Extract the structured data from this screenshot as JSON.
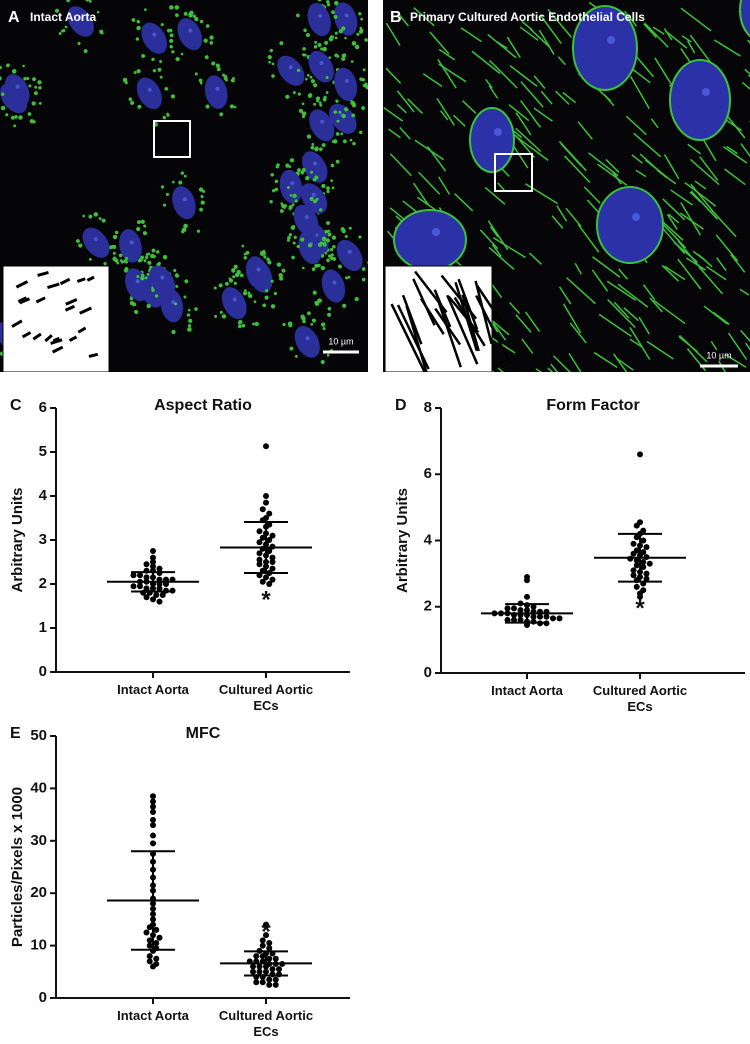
{
  "panels": [
    {
      "letter": "A",
      "title": "Intact Aorta",
      "scale_bar": "10 µm"
    },
    {
      "letter": "B",
      "title": "Primary Cultured Aortic Endothelial Cells",
      "scale_bar": "10 µm"
    }
  ],
  "chart_data": [
    {
      "type": "strip",
      "panel_label": "C",
      "title": "Aspect Ratio",
      "y_label": "Arbitrary Units",
      "categories": [
        "Intact Aorta",
        "Cultured Aortic ECs"
      ],
      "color": "#000000",
      "points": [
        [
          2.75,
          2.6,
          2.5,
          2.45,
          2.4,
          2.35,
          2.3,
          2.3,
          2.25,
          2.2,
          2.2,
          2.15,
          2.15,
          2.1,
          2.1,
          2.1,
          2.05,
          2.05,
          2.0,
          2.0,
          2.0,
          1.95,
          1.95,
          1.9,
          1.9,
          1.9,
          1.85,
          1.85,
          1.8,
          1.8,
          1.75,
          1.75,
          1.7,
          1.65,
          1.6
        ],
        [
          5.13,
          4.0,
          3.85,
          3.7,
          3.6,
          3.5,
          3.45,
          3.35,
          3.3,
          3.2,
          3.15,
          3.1,
          3.05,
          3.0,
          2.95,
          2.9,
          2.85,
          2.8,
          2.75,
          2.7,
          2.65,
          2.6,
          2.55,
          2.5,
          2.5,
          2.45,
          2.4,
          2.35,
          2.3,
          2.25,
          2.2,
          2.15,
          2.1,
          2.05,
          2.0
        ]
      ],
      "means": [
        2.05,
        2.83
      ],
      "sd": [
        0.22,
        0.58
      ],
      "annotation": {
        "text": "*",
        "category": 1,
        "position": "below"
      },
      "ylim": [
        0,
        6
      ],
      "yticks": [
        0,
        1,
        2,
        3,
        4,
        5,
        6
      ]
    },
    {
      "type": "strip",
      "panel_label": "D",
      "title": "Form Factor",
      "y_label": "Arbitrary Units",
      "categories": [
        "Intact Aorta",
        "Cultured Aortic ECs"
      ],
      "color": "#000000",
      "points": [
        [
          2.9,
          2.8,
          2.3,
          2.1,
          2.05,
          2.0,
          1.95,
          1.95,
          1.9,
          1.9,
          1.85,
          1.85,
          1.85,
          1.8,
          1.8,
          1.8,
          1.75,
          1.75,
          1.75,
          1.7,
          1.7,
          1.7,
          1.65,
          1.65,
          1.6,
          1.6,
          1.6,
          1.55,
          1.55,
          1.5,
          1.5,
          1.45
        ],
        [
          6.6,
          4.55,
          4.45,
          4.3,
          4.2,
          4.1,
          4.0,
          3.9,
          3.85,
          3.8,
          3.7,
          3.65,
          3.6,
          3.55,
          3.5,
          3.45,
          3.4,
          3.35,
          3.3,
          3.25,
          3.2,
          3.1,
          3.05,
          3.0,
          2.95,
          2.9,
          2.85,
          2.8,
          2.7,
          2.6,
          2.5,
          2.4,
          2.3
        ]
      ],
      "means": [
        1.8,
        3.48
      ],
      "sd": [
        0.28,
        0.72
      ],
      "annotation": {
        "text": "*",
        "category": 1,
        "position": "below"
      },
      "ylim": [
        0,
        8
      ],
      "yticks": [
        0,
        2,
        4,
        6,
        8
      ]
    },
    {
      "type": "strip",
      "panel_label": "E",
      "title": "MFC",
      "y_label": "Particles/Pixels x 1000",
      "categories": [
        "Intact Aorta",
        "Cultured Aortic ECs"
      ],
      "color": "#000000",
      "points": [
        [
          38.5,
          37.5,
          36.5,
          35.5,
          34,
          33,
          31,
          29.5,
          27.5,
          26,
          24.5,
          23,
          21.5,
          20.5,
          19,
          18,
          17,
          16,
          15,
          14,
          13.5,
          13,
          12.5,
          12,
          11.5,
          11,
          10.5,
          10,
          9.5,
          9,
          8,
          7.5,
          7,
          6.5,
          6
        ],
        [
          14,
          12,
          11,
          10.5,
          10,
          9.5,
          9,
          8.5,
          8.5,
          8,
          8,
          7.5,
          7.5,
          7,
          7,
          7,
          6.5,
          6.5,
          6.5,
          6,
          6,
          6,
          5.5,
          5.5,
          5,
          5,
          5,
          4.5,
          4.5,
          4,
          4,
          3.5,
          3.5,
          3,
          3,
          2.5,
          2.5
        ]
      ],
      "means": [
        18.6,
        6.6
      ],
      "sd": [
        9.4,
        2.3
      ],
      "annotation": {
        "text": "*",
        "category": 1,
        "position": "above"
      },
      "ylim": [
        0,
        50
      ],
      "yticks": [
        0,
        10,
        20,
        30,
        40,
        50
      ]
    }
  ]
}
